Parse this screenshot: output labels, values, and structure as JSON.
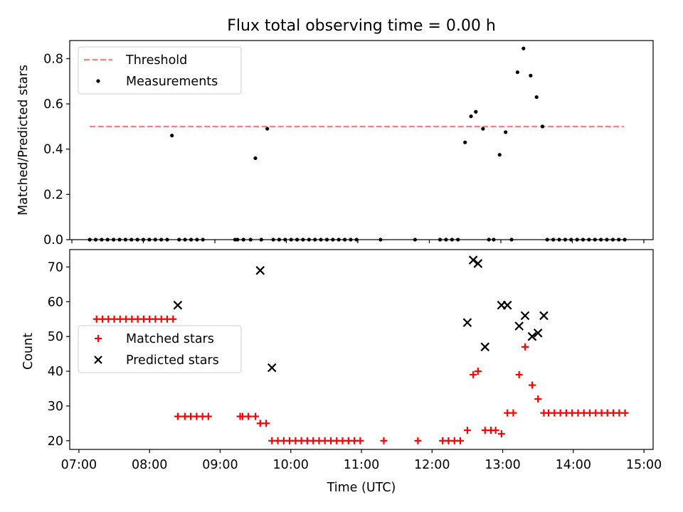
{
  "chart_data": [
    {
      "type": "scatter",
      "title": "Flux total observing time = 0.00 h",
      "xlabel": "",
      "ylabel": "Matched/Predicted stars",
      "xlim": [
        6.97,
        15.13
      ],
      "ylim": [
        0.0,
        0.88
      ],
      "yticks": [
        {
          "value": 0.0,
          "label": "0.0"
        },
        {
          "value": 0.2,
          "label": "0.2"
        },
        {
          "value": 0.4,
          "label": "0.4"
        },
        {
          "value": 0.6,
          "label": "0.6"
        },
        {
          "value": 0.8,
          "label": "0.8"
        }
      ],
      "legend": {
        "position": "upper-left",
        "entries": [
          {
            "label": "Threshold",
            "marker": "dashed-line",
            "color": "#ff8080"
          },
          {
            "label": "Measurements",
            "marker": "dot",
            "color": "#000000"
          }
        ]
      },
      "threshold": {
        "value": 0.5,
        "x_start": 7.25,
        "x_end": 14.72,
        "color": "#ff8080"
      },
      "series": [
        {
          "name": "Measurements",
          "color": "#000000",
          "points": [
            [
              7.25,
              0
            ],
            [
              7.333,
              0
            ],
            [
              7.417,
              0
            ],
            [
              7.5,
              0
            ],
            [
              7.583,
              0
            ],
            [
              7.667,
              0
            ],
            [
              7.75,
              0
            ],
            [
              7.833,
              0
            ],
            [
              7.917,
              0
            ],
            [
              8.0,
              0
            ],
            [
              8.083,
              0
            ],
            [
              8.167,
              0
            ],
            [
              8.25,
              0
            ],
            [
              8.333,
              0
            ],
            [
              8.4,
              0.46
            ],
            [
              8.5,
              0
            ],
            [
              8.583,
              0
            ],
            [
              8.667,
              0
            ],
            [
              8.75,
              0
            ],
            [
              8.833,
              0
            ],
            [
              9.283,
              0
            ],
            [
              9.317,
              0
            ],
            [
              9.4,
              0
            ],
            [
              9.5,
              0
            ],
            [
              9.567,
              0.36
            ],
            [
              9.65,
              0
            ],
            [
              9.733,
              0.49
            ],
            [
              9.817,
              0
            ],
            [
              9.9,
              0
            ],
            [
              9.983,
              0
            ],
            [
              10.067,
              0
            ],
            [
              10.15,
              0
            ],
            [
              10.233,
              0
            ],
            [
              10.317,
              0
            ],
            [
              10.4,
              0
            ],
            [
              10.483,
              0
            ],
            [
              10.567,
              0
            ],
            [
              10.65,
              0
            ],
            [
              10.733,
              0
            ],
            [
              10.817,
              0
            ],
            [
              10.9,
              0
            ],
            [
              10.983,
              0
            ],
            [
              11.317,
              0
            ],
            [
              11.8,
              0
            ],
            [
              12.15,
              0
            ],
            [
              12.233,
              0
            ],
            [
              12.317,
              0
            ],
            [
              12.4,
              0
            ],
            [
              12.5,
              0.43
            ],
            [
              12.583,
              0.545
            ],
            [
              12.65,
              0.565
            ],
            [
              12.75,
              0.49
            ],
            [
              12.833,
              0
            ],
            [
              12.9,
              0
            ],
            [
              12.983,
              0.375
            ],
            [
              13.067,
              0.475
            ],
            [
              13.15,
              0
            ],
            [
              13.233,
              0.74
            ],
            [
              13.317,
              0.845
            ],
            [
              13.417,
              0.725
            ],
            [
              13.5,
              0.63
            ],
            [
              13.583,
              0.5
            ],
            [
              13.65,
              0
            ],
            [
              13.733,
              0
            ],
            [
              13.817,
              0
            ],
            [
              13.9,
              0
            ],
            [
              13.983,
              0
            ],
            [
              14.067,
              0
            ],
            [
              14.15,
              0
            ],
            [
              14.233,
              0
            ],
            [
              14.317,
              0
            ],
            [
              14.4,
              0
            ],
            [
              14.483,
              0
            ],
            [
              14.567,
              0
            ],
            [
              14.65,
              0
            ],
            [
              14.733,
              0
            ]
          ]
        }
      ]
    },
    {
      "type": "scatter",
      "title": "",
      "xlabel": "Time (UTC)",
      "ylabel": "Count",
      "xlim": [
        6.87,
        15.13
      ],
      "ylim": [
        17.5,
        75
      ],
      "xticks": [
        {
          "value": 7,
          "label": "07:00"
        },
        {
          "value": 8,
          "label": "08:00"
        },
        {
          "value": 9,
          "label": "09:00"
        },
        {
          "value": 10,
          "label": "10:00"
        },
        {
          "value": 11,
          "label": "11:00"
        },
        {
          "value": 12,
          "label": "12:00"
        },
        {
          "value": 13,
          "label": "13:00"
        },
        {
          "value": 14,
          "label": "14:00"
        },
        {
          "value": 15,
          "label": "15:00"
        }
      ],
      "yticks": [
        {
          "value": 20,
          "label": "20"
        },
        {
          "value": 30,
          "label": "30"
        },
        {
          "value": 40,
          "label": "40"
        },
        {
          "value": 50,
          "label": "50"
        },
        {
          "value": 60,
          "label": "60"
        },
        {
          "value": 70,
          "label": "70"
        }
      ],
      "legend": {
        "position": "center-left",
        "entries": [
          {
            "label": "Matched stars",
            "marker": "plus",
            "color": "#ff0000"
          },
          {
            "label": "Predicted stars",
            "marker": "x",
            "color": "#000000"
          }
        ]
      },
      "series": [
        {
          "name": "Matched stars",
          "marker": "plus",
          "color": "#ff0000",
          "points": [
            [
              7.25,
              55
            ],
            [
              7.333,
              55
            ],
            [
              7.417,
              55
            ],
            [
              7.5,
              55
            ],
            [
              7.583,
              55
            ],
            [
              7.667,
              55
            ],
            [
              7.75,
              55
            ],
            [
              7.833,
              55
            ],
            [
              7.917,
              55
            ],
            [
              8.0,
              55
            ],
            [
              8.083,
              55
            ],
            [
              8.167,
              55
            ],
            [
              8.25,
              55
            ],
            [
              8.333,
              55
            ],
            [
              8.4,
              27
            ],
            [
              8.5,
              27
            ],
            [
              8.583,
              27
            ],
            [
              8.667,
              27
            ],
            [
              8.75,
              27
            ],
            [
              8.833,
              27
            ],
            [
              9.283,
              27
            ],
            [
              9.317,
              27
            ],
            [
              9.4,
              27
            ],
            [
              9.5,
              27
            ],
            [
              9.567,
              25
            ],
            [
              9.65,
              25
            ],
            [
              9.733,
              20
            ],
            [
              9.817,
              20
            ],
            [
              9.9,
              20
            ],
            [
              9.983,
              20
            ],
            [
              10.067,
              20
            ],
            [
              10.15,
              20
            ],
            [
              10.233,
              20
            ],
            [
              10.317,
              20
            ],
            [
              10.4,
              20
            ],
            [
              10.483,
              20
            ],
            [
              10.567,
              20
            ],
            [
              10.65,
              20
            ],
            [
              10.733,
              20
            ],
            [
              10.817,
              20
            ],
            [
              10.9,
              20
            ],
            [
              10.983,
              20
            ],
            [
              11.317,
              20
            ],
            [
              11.8,
              20
            ],
            [
              12.15,
              20
            ],
            [
              12.233,
              20
            ],
            [
              12.317,
              20
            ],
            [
              12.4,
              20
            ],
            [
              12.5,
              23
            ],
            [
              12.583,
              39
            ],
            [
              12.65,
              40
            ],
            [
              12.75,
              23
            ],
            [
              12.833,
              23
            ],
            [
              12.9,
              23
            ],
            [
              12.983,
              22
            ],
            [
              13.067,
              28
            ],
            [
              13.15,
              28
            ],
            [
              13.233,
              39
            ],
            [
              13.317,
              47
            ],
            [
              13.417,
              36
            ],
            [
              13.5,
              32
            ],
            [
              13.583,
              28
            ],
            [
              13.65,
              28
            ],
            [
              13.733,
              28
            ],
            [
              13.817,
              28
            ],
            [
              13.9,
              28
            ],
            [
              13.983,
              28
            ],
            [
              14.067,
              28
            ],
            [
              14.15,
              28
            ],
            [
              14.233,
              28
            ],
            [
              14.317,
              28
            ],
            [
              14.4,
              28
            ],
            [
              14.483,
              28
            ],
            [
              14.567,
              28
            ],
            [
              14.65,
              28
            ],
            [
              14.733,
              28
            ]
          ]
        },
        {
          "name": "Predicted stars",
          "marker": "x",
          "color": "#000000",
          "points": [
            [
              8.4,
              59
            ],
            [
              9.567,
              69
            ],
            [
              9.733,
              41
            ],
            [
              12.5,
              54
            ],
            [
              12.583,
              72
            ],
            [
              12.65,
              71
            ],
            [
              12.75,
              47
            ],
            [
              12.983,
              59
            ],
            [
              13.067,
              59
            ],
            [
              13.233,
              53
            ],
            [
              13.317,
              56
            ],
            [
              13.417,
              50
            ],
            [
              13.5,
              51
            ],
            [
              13.583,
              56
            ]
          ]
        }
      ]
    }
  ]
}
